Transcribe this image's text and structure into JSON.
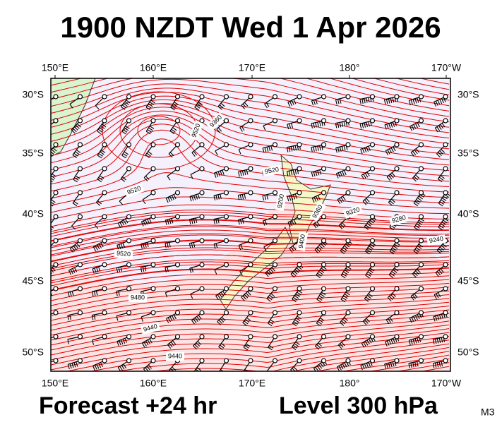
{
  "title": "1900 NZDT Wed 1 Apr 2026",
  "map": {
    "lon_labels": [
      "150°E",
      "160°E",
      "170°E",
      "180°",
      "170°W"
    ],
    "lat_labels": [
      "30°S",
      "35°S",
      "40°S",
      "45°S",
      "50°S"
    ],
    "contour_labels": [
      "9520",
      "9520",
      "9520",
      "9520",
      "9480",
      "9440",
      "9440",
      "9400",
      "9360",
      "9320",
      "9280",
      "9240",
      "9200",
      "9360"
    ]
  },
  "footer": {
    "forecast": "Forecast +24 hr",
    "level": "Level 300 hPa",
    "code": "M3"
  }
}
